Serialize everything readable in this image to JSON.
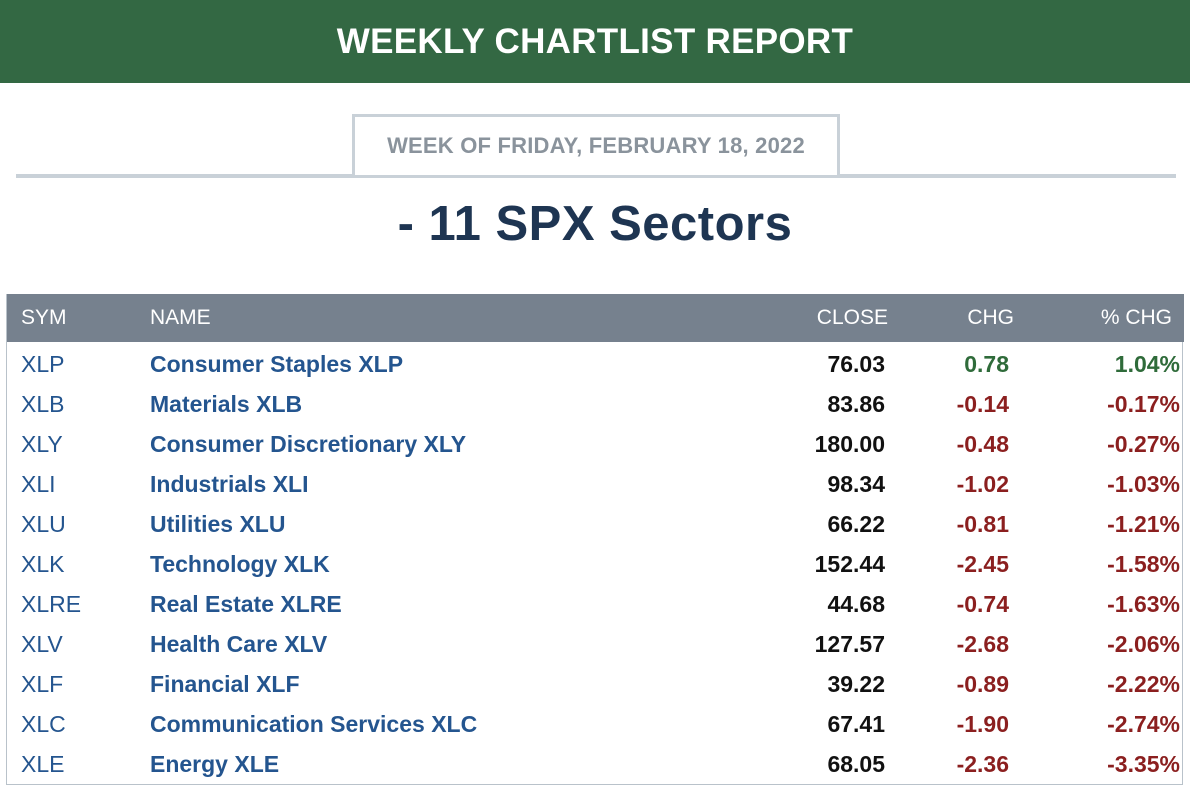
{
  "header": {
    "title": "WEEKLY CHARTLIST REPORT"
  },
  "week": {
    "label": "WEEK OF FRIDAY, FEBRUARY 18, 2022"
  },
  "section": {
    "title": "- 11 SPX Sectors"
  },
  "colors": {
    "banner": "#336843",
    "up": "#2f6b3a",
    "down": "#8b1f1f",
    "header_bg": "#76818e",
    "link": "#24558f"
  },
  "table": {
    "columns": {
      "sym": "SYM",
      "name": "NAME",
      "close": "CLOSE",
      "chg": "CHG",
      "pct": "% CHG"
    },
    "rows": [
      {
        "sym": "XLP",
        "name": "Consumer Staples XLP",
        "close": "76.03",
        "chg": "0.78",
        "pct": "1.04%",
        "dir": "up"
      },
      {
        "sym": "XLB",
        "name": "Materials XLB",
        "close": "83.86",
        "chg": "-0.14",
        "pct": "-0.17%",
        "dir": "down"
      },
      {
        "sym": "XLY",
        "name": "Consumer Discretionary XLY",
        "close": "180.00",
        "chg": "-0.48",
        "pct": "-0.27%",
        "dir": "down"
      },
      {
        "sym": "XLI",
        "name": "Industrials XLI",
        "close": "98.34",
        "chg": "-1.02",
        "pct": "-1.03%",
        "dir": "down"
      },
      {
        "sym": "XLU",
        "name": "Utilities XLU",
        "close": "66.22",
        "chg": "-0.81",
        "pct": "-1.21%",
        "dir": "down"
      },
      {
        "sym": "XLK",
        "name": "Technology XLK",
        "close": "152.44",
        "chg": "-2.45",
        "pct": "-1.58%",
        "dir": "down"
      },
      {
        "sym": "XLRE",
        "name": "Real Estate XLRE",
        "close": "44.68",
        "chg": "-0.74",
        "pct": "-1.63%",
        "dir": "down"
      },
      {
        "sym": "XLV",
        "name": "Health Care XLV",
        "close": "127.57",
        "chg": "-2.68",
        "pct": "-2.06%",
        "dir": "down"
      },
      {
        "sym": "XLF",
        "name": "Financial XLF",
        "close": "39.22",
        "chg": "-0.89",
        "pct": "-2.22%",
        "dir": "down"
      },
      {
        "sym": "XLC",
        "name": "Communication Services XLC",
        "close": "67.41",
        "chg": "-1.90",
        "pct": "-2.74%",
        "dir": "down"
      },
      {
        "sym": "XLE",
        "name": "Energy XLE",
        "close": "68.05",
        "chg": "-2.36",
        "pct": "-3.35%",
        "dir": "down"
      }
    ]
  }
}
